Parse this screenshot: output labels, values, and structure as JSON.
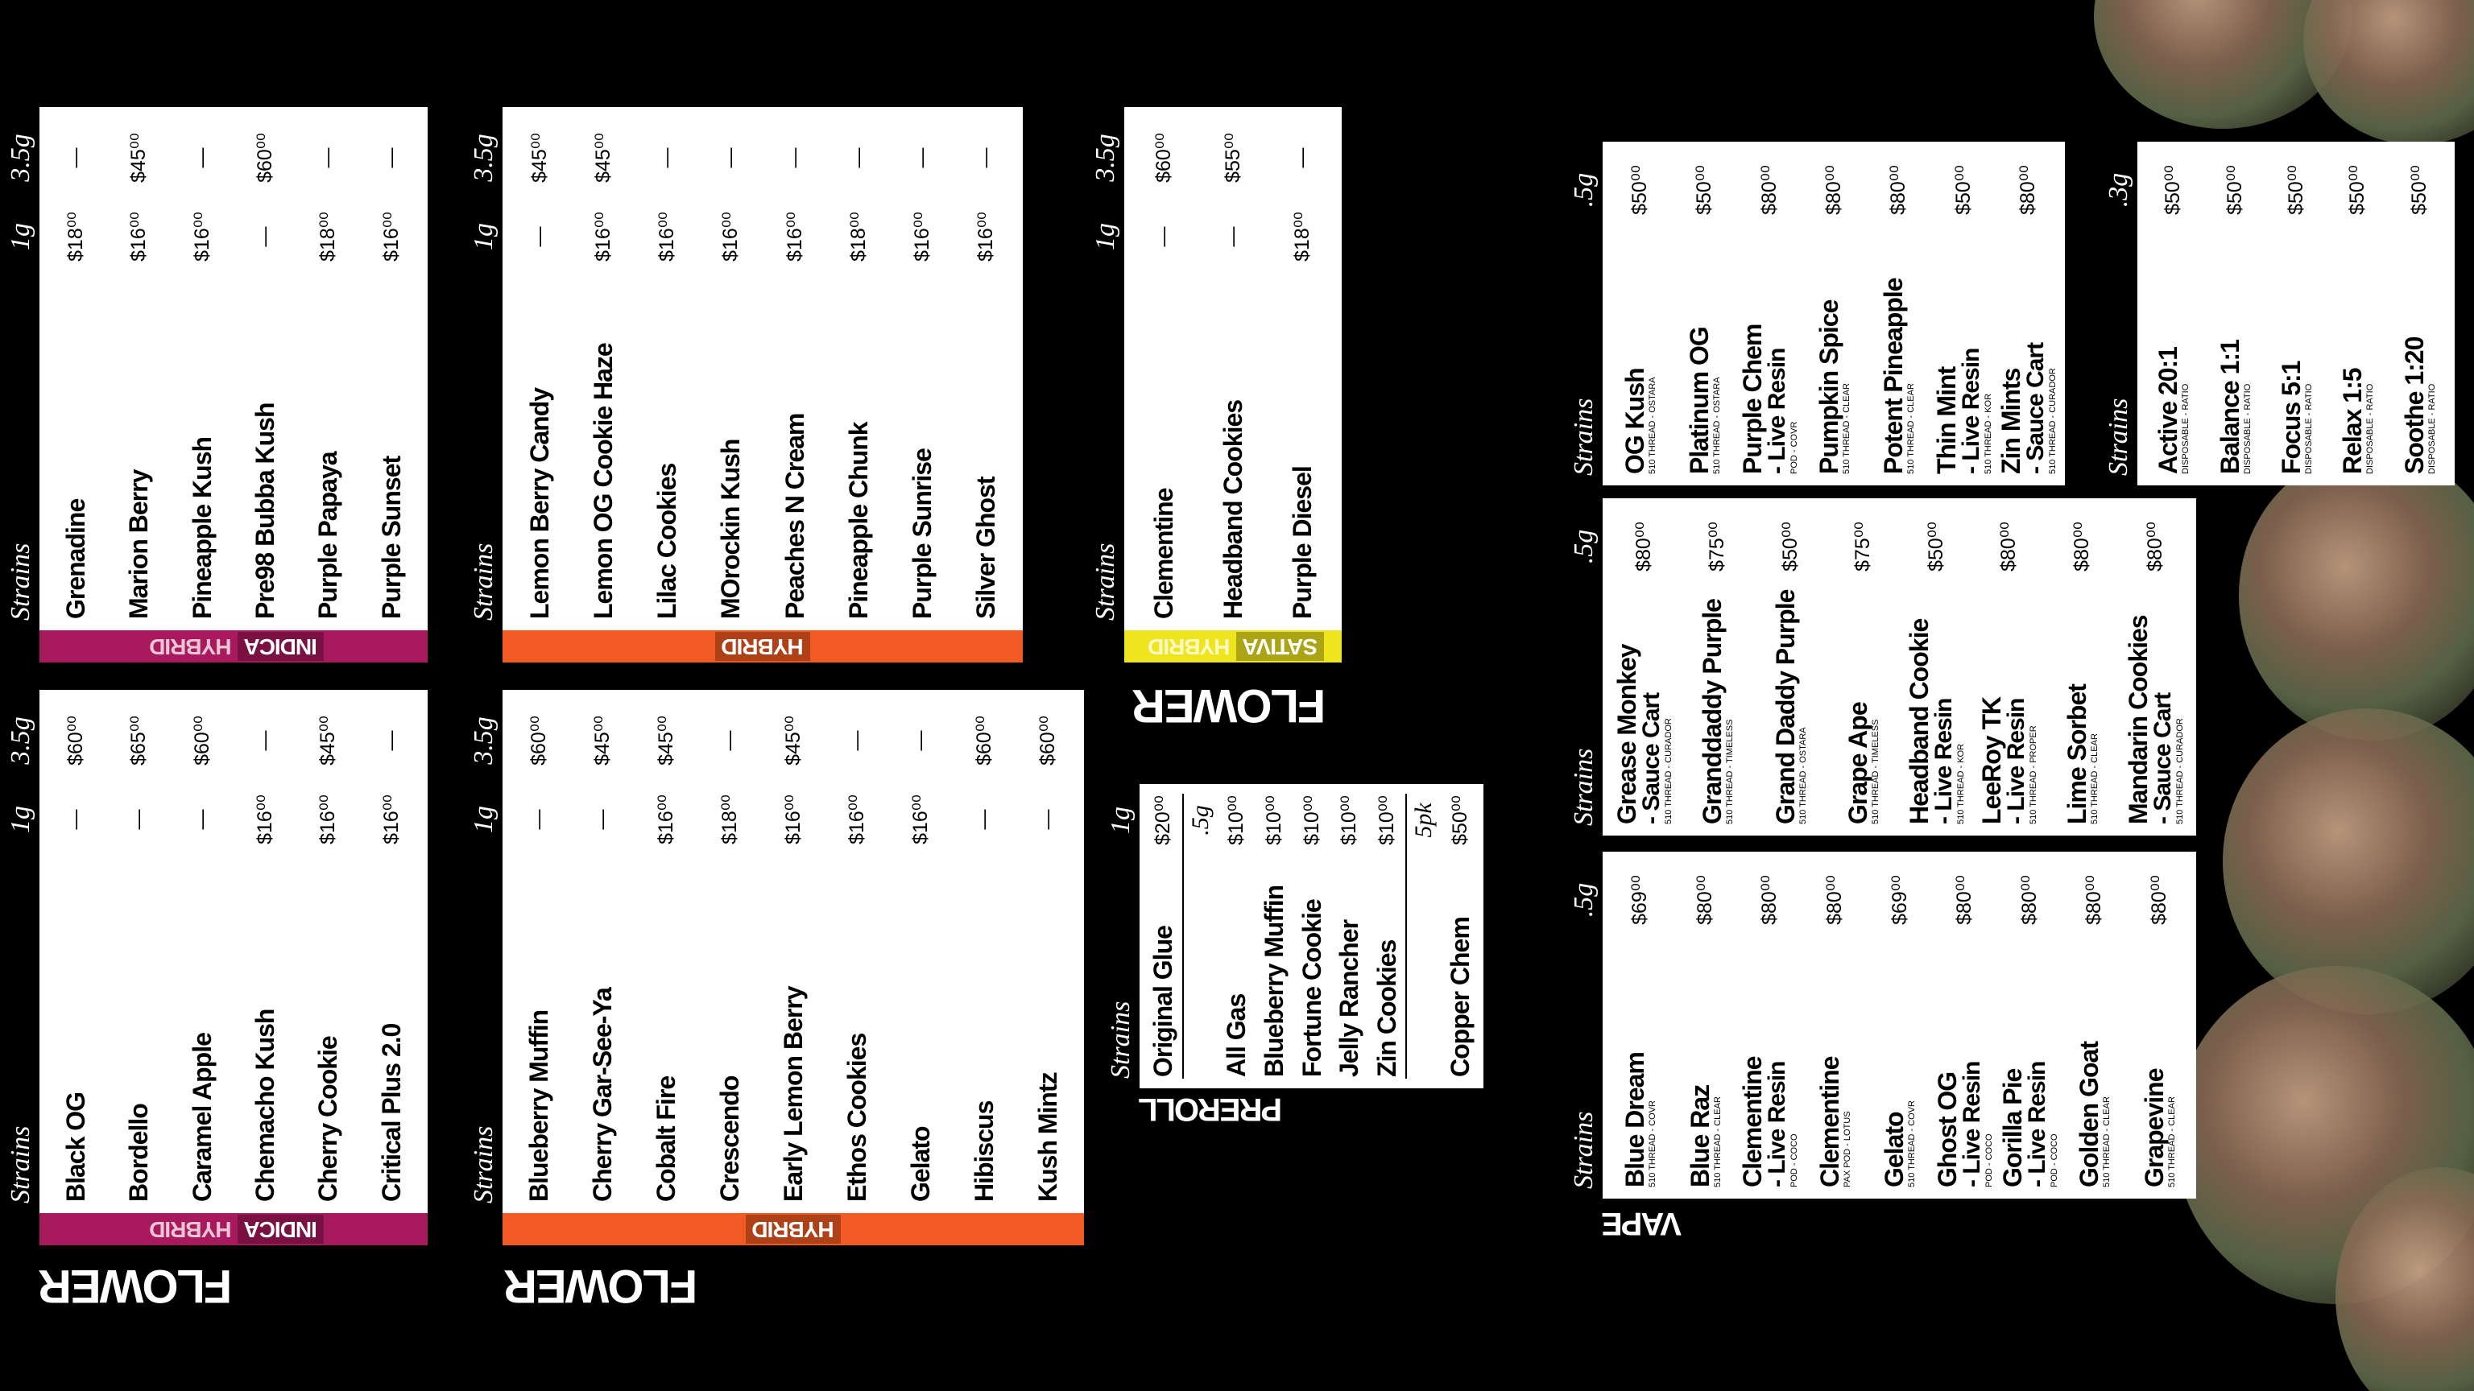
{
  "labels": [
    "FLOWER",
    "FLOWER",
    "FLOWER",
    "PREROLL",
    "VAPE"
  ],
  "panels": [
    {
      "kind": "flower",
      "color": "#a8195e",
      "tags": [
        "INDICA",
        "HYBRID"
      ],
      "headers": [
        "Strains",
        "1g",
        "3.5g"
      ],
      "items": [
        {
          "name": "Grenadine",
          "prices": [
            "$18⁰⁰",
            "—"
          ]
        },
        {
          "name": "Marion Berry",
          "prices": [
            "$16⁰⁰",
            "$45⁰⁰"
          ]
        },
        {
          "name": "Pineapple Kush",
          "prices": [
            "$16⁰⁰",
            "—"
          ]
        },
        {
          "name": "Pre98 Bubba Kush",
          "prices": [
            "—",
            "$60⁰⁰"
          ]
        },
        {
          "name": "Purple Papaya",
          "prices": [
            "$18⁰⁰",
            "—"
          ]
        },
        {
          "name": "Purple Sunset",
          "prices": [
            "$16⁰⁰",
            "—"
          ]
        }
      ]
    },
    {
      "kind": "flower",
      "color": "#a8195e",
      "tags": [
        "INDICA",
        "HYBRID"
      ],
      "headers": [
        "Strains",
        "1g",
        "3.5g"
      ],
      "items": [
        {
          "name": "Black OG",
          "prices": [
            "—",
            "$60⁰⁰"
          ]
        },
        {
          "name": "Bordello",
          "prices": [
            "—",
            "$65⁰⁰"
          ]
        },
        {
          "name": "Caramel Apple",
          "prices": [
            "—",
            "$60⁰⁰"
          ]
        },
        {
          "name": "Chemacho Kush",
          "prices": [
            "$16⁰⁰",
            "—"
          ]
        },
        {
          "name": "Cherry Cookie",
          "prices": [
            "$16⁰⁰",
            "$45⁰⁰"
          ]
        },
        {
          "name": "Critical Plus 2.0",
          "prices": [
            "$16⁰⁰",
            "—"
          ]
        }
      ]
    },
    {
      "kind": "flower",
      "color": "#f15a22",
      "tags": [
        "HYBRID"
      ],
      "headers": [
        "Strains",
        "1g",
        "3.5g"
      ],
      "items": [
        {
          "name": "Lemon Berry Candy",
          "prices": [
            "—",
            "$45⁰⁰"
          ]
        },
        {
          "name": "Lemon OG Cookie Haze",
          "prices": [
            "$16⁰⁰",
            "$45⁰⁰"
          ]
        },
        {
          "name": "Lilac Cookies",
          "prices": [
            "$16⁰⁰",
            "—"
          ]
        },
        {
          "name": "MOrockin Kush",
          "prices": [
            "$16⁰⁰",
            "—"
          ]
        },
        {
          "name": "Peaches N Cream",
          "prices": [
            "$16⁰⁰",
            "—"
          ]
        },
        {
          "name": "Pineapple Chunk",
          "prices": [
            "$18⁰⁰",
            "—"
          ]
        },
        {
          "name": "Purple Sunrise",
          "prices": [
            "$16⁰⁰",
            "—"
          ]
        },
        {
          "name": "Silver Ghost",
          "prices": [
            "$16⁰⁰",
            "—"
          ]
        }
      ]
    },
    {
      "kind": "flower",
      "color": "#f15a22",
      "tags": [
        "HYBRID"
      ],
      "headers": [
        "Strains",
        "1g",
        "3.5g"
      ],
      "items": [
        {
          "name": "Blueberry Muffin",
          "prices": [
            "—",
            "$60⁰⁰"
          ]
        },
        {
          "name": "Cherry Gar-See-Ya",
          "prices": [
            "—",
            "$45⁰⁰"
          ]
        },
        {
          "name": "Cobalt Fire",
          "prices": [
            "$16⁰⁰",
            "$45⁰⁰"
          ]
        },
        {
          "name": "Crescendo",
          "prices": [
            "$18⁰⁰",
            "—"
          ]
        },
        {
          "name": "Early Lemon Berry",
          "prices": [
            "$16⁰⁰",
            "$45⁰⁰"
          ]
        },
        {
          "name": "Ethos Cookies",
          "prices": [
            "$16⁰⁰",
            "—"
          ]
        },
        {
          "name": "Gelato",
          "prices": [
            "$16⁰⁰",
            "—"
          ]
        },
        {
          "name": "Hibiscus",
          "prices": [
            "—",
            "$60⁰⁰"
          ]
        },
        {
          "name": "Kush Mintz",
          "prices": [
            "—",
            "$60⁰⁰"
          ]
        }
      ]
    },
    {
      "kind": "flower",
      "color": "#eee51f",
      "tags": [
        "SATIVA",
        "HYBRID"
      ],
      "headers": [
        "Strains",
        "1g",
        "3.5g"
      ],
      "items": [
        {
          "name": "Clementine",
          "prices": [
            "—",
            "$60⁰⁰"
          ]
        },
        {
          "name": "Headband Cookies",
          "prices": [
            "—",
            "$55⁰⁰"
          ]
        },
        {
          "name": "Purple Diesel",
          "prices": [
            "$18⁰⁰",
            "—"
          ]
        }
      ]
    },
    {
      "kind": "preroll",
      "headers": [
        "Strains",
        "1g"
      ],
      "groups": [
        {
          "items": [
            {
              "name": "Original Glue",
              "prices": [
                "$20⁰⁰"
              ]
            }
          ]
        },
        {
          "size": ".5g",
          "items": [
            {
              "name": "All Gas",
              "prices": [
                "$10⁰⁰"
              ]
            },
            {
              "name": "Blueberry Muffin",
              "prices": [
                "$10⁰⁰"
              ]
            },
            {
              "name": "Fortune Cookie",
              "prices": [
                "$10⁰⁰"
              ]
            },
            {
              "name": "Jelly Rancher",
              "prices": [
                "$10⁰⁰"
              ]
            },
            {
              "name": "Zin Cookies",
              "prices": [
                "$10⁰⁰"
              ]
            }
          ]
        },
        {
          "size": "5pk",
          "items": [
            {
              "name": "Copper Chem",
              "prices": [
                "$50⁰⁰"
              ]
            }
          ]
        }
      ]
    },
    {
      "kind": "vape",
      "headers": [
        "Strains",
        ".5g"
      ],
      "items": [
        {
          "name": "OG Kush",
          "sub": "510 THREAD - OSTARA",
          "prices": [
            "$50⁰⁰"
          ]
        },
        {
          "name": "Platinum OG",
          "sub": "510 THREAD - OSTARA",
          "prices": [
            "$50⁰⁰"
          ]
        },
        {
          "name": "Purple Chem",
          "detail": "- Live Resin",
          "sub": "POD - COVR",
          "prices": [
            "$80⁰⁰"
          ]
        },
        {
          "name": "Pumpkin Spice",
          "sub": "510 THREAD - CLEAR",
          "prices": [
            "$80⁰⁰"
          ]
        },
        {
          "name": "Potent Pineapple",
          "sub": "510 THREAD - CLEAR",
          "prices": [
            "$80⁰⁰"
          ]
        },
        {
          "name": "Thin Mint",
          "detail": "- Live Resin",
          "sub": "510 THREAD - KOR",
          "prices": [
            "$50⁰⁰"
          ]
        },
        {
          "name": "Zin Mints",
          "detail": "- Sauce Cart",
          "sub": "510 THREAD - CURADOR",
          "prices": [
            "$80⁰⁰"
          ]
        }
      ]
    },
    {
      "kind": "vape",
      "headers": [
        "Strains",
        ".3g"
      ],
      "items": [
        {
          "name": "Active 20:1",
          "sub": "DISPOSABLE - RATIO",
          "prices": [
            "$50⁰⁰"
          ]
        },
        {
          "name": "Balance 1:1",
          "sub": "DISPOSABLE - RATIO",
          "prices": [
            "$50⁰⁰"
          ]
        },
        {
          "name": "Focus 5:1",
          "sub": "DISPOSABLE - RATIO",
          "prices": [
            "$50⁰⁰"
          ]
        },
        {
          "name": "Relax 1:5",
          "sub": "DISPOSABLE - RATIO",
          "prices": [
            "$50⁰⁰"
          ]
        },
        {
          "name": "Soothe 1:20",
          "sub": "DISPOSABLE - RATIO",
          "prices": [
            "$50⁰⁰"
          ]
        }
      ]
    },
    {
      "kind": "vape",
      "headers": [
        "Strains",
        ".5g"
      ],
      "items": [
        {
          "name": "Grease Monkey",
          "detail": "- Sauce Cart",
          "sub": "510 THREAD - CURADOR",
          "prices": [
            "$80⁰⁰"
          ]
        },
        {
          "name": "Granddaddy Purple",
          "sub": "510 THREAD - TIMELESS",
          "prices": [
            "$75⁰⁰"
          ]
        },
        {
          "name": "Grand Daddy Purple",
          "sub": "510 THREAD - OSTARA",
          "prices": [
            "$50⁰⁰"
          ]
        },
        {
          "name": "Grape Ape",
          "sub": "510 THREAD - TIMELESS",
          "prices": [
            "$75⁰⁰"
          ]
        },
        {
          "name": "Headband Cookie",
          "detail": "- Live Resin",
          "sub": "510 THREAD - KOR",
          "prices": [
            "$50⁰⁰"
          ]
        },
        {
          "name": "LeeRoy TK",
          "detail": "- Live Resin",
          "sub": "510 THREAD - PROPER",
          "prices": [
            "$80⁰⁰"
          ]
        },
        {
          "name": "Lime Sorbet",
          "sub": "510 THREAD - CLEAR",
          "prices": [
            "$80⁰⁰"
          ]
        },
        {
          "name": "Mandarin Cookies",
          "detail": "- Sauce Cart",
          "sub": "510 THREAD - CURADOR",
          "prices": [
            "$80⁰⁰"
          ]
        }
      ]
    },
    {
      "kind": "vape",
      "headers": [
        "Strains",
        ".5g"
      ],
      "items": [
        {
          "name": "Blue Dream",
          "sub": "510 THREAD - COVR",
          "prices": [
            "$69⁰⁰"
          ]
        },
        {
          "name": "Blue Raz",
          "sub": "510 THREAD - CLEAR",
          "prices": [
            "$80⁰⁰"
          ]
        },
        {
          "name": "Clementine",
          "detail": "- Live Resin",
          "sub": "POD - COCO",
          "prices": [
            "$80⁰⁰"
          ]
        },
        {
          "name": "Clementine",
          "sub": "PAX POD - LOTUS",
          "prices": [
            "$80⁰⁰"
          ]
        },
        {
          "name": "Gelato",
          "sub": "510 THREAD - COVR",
          "prices": [
            "$69⁰⁰"
          ]
        },
        {
          "name": "Ghost OG",
          "detail": "- Live Resin",
          "sub": "POD - COCO",
          "prices": [
            "$80⁰⁰"
          ]
        },
        {
          "name": "Gorilla Pie",
          "detail": "- Live Resin",
          "sub": "POD - COCO",
          "prices": [
            "$80⁰⁰"
          ]
        },
        {
          "name": "Golden Goat",
          "sub": "510 THREAD - CLEAR",
          "prices": [
            "$80⁰⁰"
          ]
        },
        {
          "name": "Grapevine",
          "sub": "510 THREAD - CLEAR",
          "prices": [
            "$80⁰⁰"
          ]
        }
      ]
    }
  ]
}
